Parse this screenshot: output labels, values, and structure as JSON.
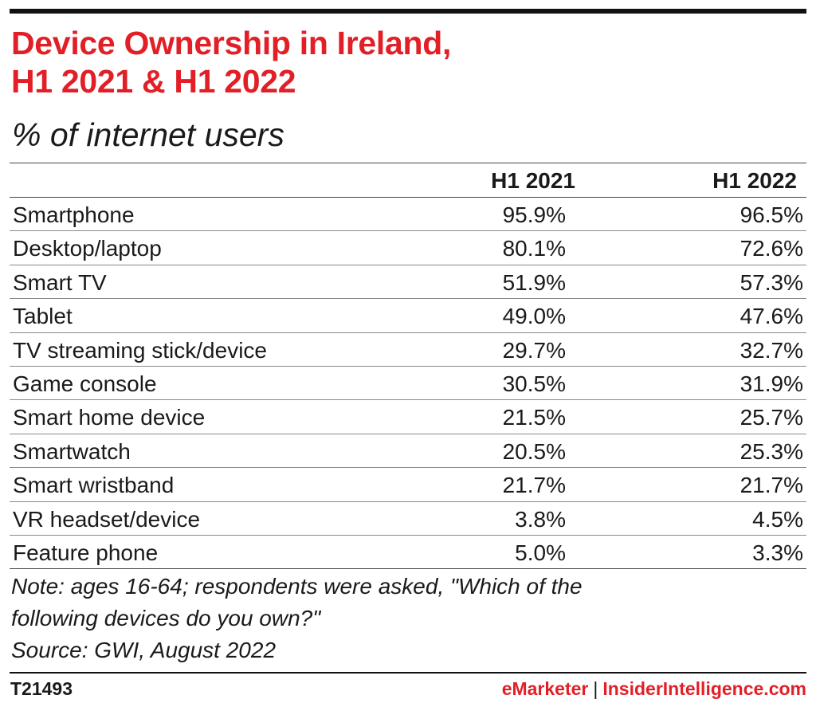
{
  "chart_data": {
    "type": "table",
    "title_lines": [
      "Device Ownership in Ireland,",
      "H1 2021 & H1 2022"
    ],
    "subtitle": "% of internet users",
    "columns": [
      "H1 2021",
      "H1 2022"
    ],
    "rows": [
      {
        "label": "Smartphone",
        "values": [
          "95.9%",
          "96.5%"
        ]
      },
      {
        "label": "Desktop/laptop",
        "values": [
          "80.1%",
          "72.6%"
        ]
      },
      {
        "label": "Smart TV",
        "values": [
          "51.9%",
          "57.3%"
        ]
      },
      {
        "label": "Tablet",
        "values": [
          "49.0%",
          "47.6%"
        ]
      },
      {
        "label": "TV streaming stick/device",
        "values": [
          "29.7%",
          "32.7%"
        ]
      },
      {
        "label": "Game console",
        "values": [
          "30.5%",
          "31.9%"
        ]
      },
      {
        "label": "Smart home device",
        "values": [
          "21.5%",
          "25.7%"
        ]
      },
      {
        "label": "Smartwatch",
        "values": [
          "20.5%",
          "25.3%"
        ]
      },
      {
        "label": "Smart wristband",
        "values": [
          "21.7%",
          "21.7%"
        ]
      },
      {
        "label": "VR headset/device",
        "values": [
          "3.8%",
          "4.5%"
        ]
      },
      {
        "label": "Feature phone",
        "values": [
          "5.0%",
          "3.3%"
        ]
      }
    ]
  },
  "note": {
    "line1": "Note: ages 16-64; respondents were asked, \"Which of the",
    "line2": "following devices do you own?\"",
    "source": "Source: GWI, August 2022"
  },
  "footer": {
    "chart_id": "T21493",
    "brand_emarketer": "eMarketer",
    "brand_separator": "|",
    "brand_insider": "InsiderIntelligence.com"
  },
  "colors": {
    "title": "#e21f26",
    "text": "#1a1a1a",
    "rule": "#111111"
  }
}
